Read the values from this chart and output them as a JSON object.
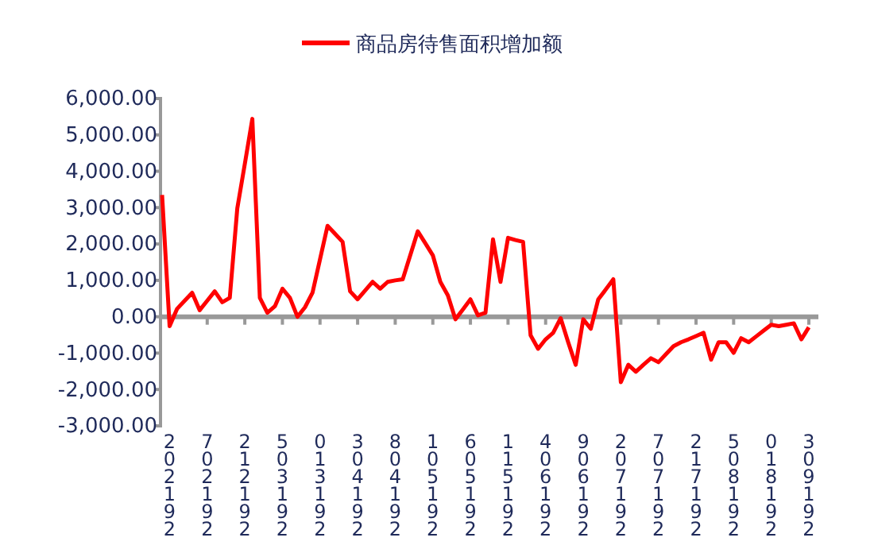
{
  "chart_data": {
    "type": "line",
    "legend": "top",
    "ylim": [
      -3000,
      6000
    ],
    "yticks": [
      {
        "value": -3000,
        "label": "-3,000.00"
      },
      {
        "value": -2000,
        "label": "-2,000.00"
      },
      {
        "value": -1000,
        "label": "-1,000.00"
      },
      {
        "value": 0,
        "label": "0.00"
      },
      {
        "value": 1000,
        "label": "1,000.00"
      },
      {
        "value": 2000,
        "label": "2,000.00"
      },
      {
        "value": 3000,
        "label": "3,000.00"
      },
      {
        "value": 4000,
        "label": "4,000.00"
      },
      {
        "value": 5000,
        "label": "5,000.00"
      },
      {
        "value": 6000,
        "label": "6,000.00"
      }
    ],
    "categories": [
      null,
      "202192",
      null,
      null,
      null,
      null,
      "702192",
      null,
      null,
      null,
      null,
      "212192",
      null,
      null,
      null,
      null,
      "503192",
      null,
      null,
      null,
      null,
      "013192",
      null,
      null,
      null,
      null,
      "304192",
      null,
      null,
      null,
      null,
      "804192",
      null,
      null,
      null,
      null,
      "105192",
      null,
      null,
      null,
      null,
      "605192",
      null,
      null,
      null,
      null,
      "115192",
      null,
      null,
      null,
      null,
      "406192",
      null,
      null,
      null,
      null,
      "906192",
      null,
      null,
      null,
      null,
      "207192",
      null,
      null,
      null,
      null,
      "707192",
      null,
      null,
      null,
      null,
      "217192",
      null,
      null,
      null,
      null,
      "508192",
      null,
      null,
      null,
      null,
      "018192",
      null,
      null,
      null,
      null,
      "309192"
    ],
    "series": [
      {
        "name": "商品房待售面积增加额",
        "color": "#ff0000",
        "values": [
          3350,
          -260,
          220,
          440,
          660,
          180,
          440,
          700,
          400,
          520,
          2980,
          4200,
          5440,
          520,
          110,
          290,
          770,
          520,
          0,
          260,
          660,
          1580,
          2500,
          2280,
          2060,
          700,
          480,
          720,
          960,
          770,
          960,
          1000,
          1030,
          1690,
          2350,
          2020,
          1690,
          960,
          590,
          -70,
          200,
          480,
          40,
          110,
          2130,
          960,
          2170,
          2110,
          2060,
          -510,
          -880,
          -620,
          -440,
          -40,
          -700,
          -1320,
          -70,
          -330,
          480,
          750,
          1030,
          -1800,
          -1320,
          -1510,
          -1320,
          -1140,
          -1250,
          -1030,
          -810,
          -700,
          -620,
          -530,
          -440,
          -1180,
          -700,
          -700,
          -990,
          -590,
          -700,
          -540,
          -380,
          -220,
          -260,
          -220,
          -180,
          -620,
          -290
        ]
      }
    ]
  }
}
